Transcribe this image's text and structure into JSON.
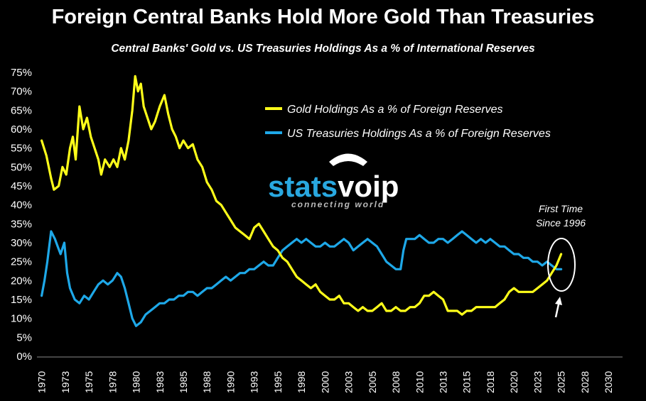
{
  "chart_data": {
    "type": "line",
    "title": "Foreign Central Banks Hold More Gold Than Treasuries",
    "subtitle": "Central Banks' Gold vs. US Treasuries Holdings As a % of International Reserves",
    "xlim": [
      1969.5,
      2031.5
    ],
    "ylim": [
      0,
      75
    ],
    "x_ticks": [
      "1970",
      "1973",
      "1975",
      "1978",
      "1980",
      "1983",
      "1985",
      "1988",
      "1990",
      "1993",
      "1995",
      "1998",
      "2000",
      "2003",
      "2005",
      "2008",
      "2010",
      "2013",
      "2015",
      "2018",
      "2020",
      "2023",
      "2025",
      "2028",
      "2030"
    ],
    "y_ticks": [
      "0%",
      "5%",
      "10%",
      "15%",
      "20%",
      "25%",
      "30%",
      "35%",
      "40%",
      "45%",
      "50%",
      "55%",
      "60%",
      "65%",
      "70%",
      "75%"
    ],
    "y_tick_values": [
      0,
      5,
      10,
      15,
      20,
      25,
      30,
      35,
      40,
      45,
      50,
      55,
      60,
      65,
      70,
      75
    ],
    "legend_position": "top-right",
    "grid": false,
    "series": [
      {
        "name": "Gold Holdings As a % of Foreign Reserves",
        "color": "#ffff1a",
        "points": [
          [
            1970,
            57
          ],
          [
            1970.5,
            53
          ],
          [
            1971,
            47
          ],
          [
            1971.3,
            44
          ],
          [
            1971.8,
            45
          ],
          [
            1972.2,
            50
          ],
          [
            1972.6,
            48
          ],
          [
            1973,
            55
          ],
          [
            1973.3,
            58
          ],
          [
            1973.6,
            52
          ],
          [
            1974,
            66
          ],
          [
            1974.4,
            60
          ],
          [
            1974.8,
            63
          ],
          [
            1975.2,
            58
          ],
          [
            1975.6,
            55
          ],
          [
            1976,
            52
          ],
          [
            1976.3,
            48
          ],
          [
            1976.7,
            52
          ],
          [
            1977.2,
            50
          ],
          [
            1977.6,
            52
          ],
          [
            1978,
            50
          ],
          [
            1978.4,
            55
          ],
          [
            1978.8,
            52
          ],
          [
            1979.2,
            57
          ],
          [
            1979.6,
            65
          ],
          [
            1979.9,
            74
          ],
          [
            1980.2,
            70
          ],
          [
            1980.5,
            72
          ],
          [
            1980.8,
            66
          ],
          [
            1981.2,
            63
          ],
          [
            1981.6,
            60
          ],
          [
            1982,
            62
          ],
          [
            1982.5,
            66
          ],
          [
            1983,
            69
          ],
          [
            1983.4,
            64
          ],
          [
            1983.8,
            60
          ],
          [
            1984.2,
            58
          ],
          [
            1984.6,
            55
          ],
          [
            1985,
            57
          ],
          [
            1985.5,
            55
          ],
          [
            1986,
            56
          ],
          [
            1986.5,
            52
          ],
          [
            1987,
            50
          ],
          [
            1987.5,
            46
          ],
          [
            1988,
            44
          ],
          [
            1988.5,
            41
          ],
          [
            1989,
            40
          ],
          [
            1989.5,
            38
          ],
          [
            1990,
            36
          ],
          [
            1990.5,
            34
          ],
          [
            1991,
            33
          ],
          [
            1991.5,
            32
          ],
          [
            1992,
            31
          ],
          [
            1992.5,
            34
          ],
          [
            1993,
            35
          ],
          [
            1993.5,
            33
          ],
          [
            1994,
            31
          ],
          [
            1994.5,
            29
          ],
          [
            1995,
            28
          ],
          [
            1995.5,
            26
          ],
          [
            1996,
            25
          ],
          [
            1996.5,
            23
          ],
          [
            1997,
            21
          ],
          [
            1997.5,
            20
          ],
          [
            1998,
            19
          ],
          [
            1998.5,
            18
          ],
          [
            1999,
            19
          ],
          [
            1999.5,
            17
          ],
          [
            2000,
            16
          ],
          [
            2000.5,
            15
          ],
          [
            2001,
            15
          ],
          [
            2001.5,
            16
          ],
          [
            2002,
            14
          ],
          [
            2002.5,
            14
          ],
          [
            2003,
            13
          ],
          [
            2003.5,
            12
          ],
          [
            2004,
            13
          ],
          [
            2004.5,
            12
          ],
          [
            2005,
            12
          ],
          [
            2005.5,
            13
          ],
          [
            2006,
            14
          ],
          [
            2006.5,
            12
          ],
          [
            2007,
            12
          ],
          [
            2007.5,
            13
          ],
          [
            2008,
            12
          ],
          [
            2008.5,
            12
          ],
          [
            2009,
            13
          ],
          [
            2009.5,
            13
          ],
          [
            2010,
            14
          ],
          [
            2010.5,
            16
          ],
          [
            2011,
            16
          ],
          [
            2011.5,
            17
          ],
          [
            2012,
            16
          ],
          [
            2012.5,
            15
          ],
          [
            2013,
            12
          ],
          [
            2013.5,
            12
          ],
          [
            2014,
            12
          ],
          [
            2014.5,
            11
          ],
          [
            2015,
            12
          ],
          [
            2015.5,
            12
          ],
          [
            2016,
            13
          ],
          [
            2016.5,
            13
          ],
          [
            2017,
            13
          ],
          [
            2017.5,
            13
          ],
          [
            2018,
            13
          ],
          [
            2018.5,
            14
          ],
          [
            2019,
            15
          ],
          [
            2019.5,
            17
          ],
          [
            2020,
            18
          ],
          [
            2020.5,
            17
          ],
          [
            2021,
            17
          ],
          [
            2021.5,
            17
          ],
          [
            2022,
            17
          ],
          [
            2022.5,
            18
          ],
          [
            2023,
            19
          ],
          [
            2023.5,
            20
          ],
          [
            2024,
            22
          ],
          [
            2024.5,
            24
          ],
          [
            2025,
            27
          ]
        ]
      },
      {
        "name": "US Treasuries Holdings As a % of Foreign Reserves",
        "color": "#1ea8e8",
        "points": [
          [
            1970,
            16
          ],
          [
            1970.3,
            20
          ],
          [
            1970.6,
            25
          ],
          [
            1971,
            33
          ],
          [
            1971.4,
            31
          ],
          [
            1971.7,
            29
          ],
          [
            1972,
            27
          ],
          [
            1972.4,
            30
          ],
          [
            1972.7,
            22
          ],
          [
            1973,
            18
          ],
          [
            1973.5,
            15
          ],
          [
            1974,
            14
          ],
          [
            1974.5,
            16
          ],
          [
            1975,
            15
          ],
          [
            1975.5,
            17
          ],
          [
            1976,
            19
          ],
          [
            1976.5,
            20
          ],
          [
            1977,
            19
          ],
          [
            1977.5,
            20
          ],
          [
            1978,
            22
          ],
          [
            1978.4,
            21
          ],
          [
            1978.8,
            18
          ],
          [
            1979.2,
            14
          ],
          [
            1979.6,
            10
          ],
          [
            1980,
            8
          ],
          [
            1980.5,
            9
          ],
          [
            1981,
            11
          ],
          [
            1981.5,
            12
          ],
          [
            1982,
            13
          ],
          [
            1982.5,
            14
          ],
          [
            1983,
            14
          ],
          [
            1983.5,
            15
          ],
          [
            1984,
            15
          ],
          [
            1984.5,
            16
          ],
          [
            1985,
            16
          ],
          [
            1985.5,
            17
          ],
          [
            1986,
            17
          ],
          [
            1986.5,
            16
          ],
          [
            1987,
            17
          ],
          [
            1987.5,
            18
          ],
          [
            1988,
            18
          ],
          [
            1988.5,
            19
          ],
          [
            1989,
            20
          ],
          [
            1989.5,
            21
          ],
          [
            1990,
            20
          ],
          [
            1990.5,
            21
          ],
          [
            1991,
            22
          ],
          [
            1991.5,
            22
          ],
          [
            1992,
            23
          ],
          [
            1992.5,
            23
          ],
          [
            1993,
            24
          ],
          [
            1993.5,
            25
          ],
          [
            1994,
            24
          ],
          [
            1994.5,
            24
          ],
          [
            1995,
            26
          ],
          [
            1995.5,
            28
          ],
          [
            1996,
            29
          ],
          [
            1996.5,
            30
          ],
          [
            1997,
            31
          ],
          [
            1997.5,
            30
          ],
          [
            1998,
            31
          ],
          [
            1998.5,
            30
          ],
          [
            1999,
            29
          ],
          [
            1999.5,
            29
          ],
          [
            2000,
            30
          ],
          [
            2000.5,
            29
          ],
          [
            2001,
            29
          ],
          [
            2001.5,
            30
          ],
          [
            2002,
            31
          ],
          [
            2002.5,
            30
          ],
          [
            2003,
            28
          ],
          [
            2003.5,
            29
          ],
          [
            2004,
            30
          ],
          [
            2004.5,
            31
          ],
          [
            2005,
            30
          ],
          [
            2005.5,
            29
          ],
          [
            2006,
            27
          ],
          [
            2006.5,
            25
          ],
          [
            2007,
            24
          ],
          [
            2007.5,
            23
          ],
          [
            2008,
            23
          ],
          [
            2008.3,
            28
          ],
          [
            2008.6,
            31
          ],
          [
            2009,
            31
          ],
          [
            2009.5,
            31
          ],
          [
            2010,
            32
          ],
          [
            2010.5,
            31
          ],
          [
            2011,
            30
          ],
          [
            2011.5,
            30
          ],
          [
            2012,
            31
          ],
          [
            2012.5,
            31
          ],
          [
            2013,
            30
          ],
          [
            2013.5,
            31
          ],
          [
            2014,
            32
          ],
          [
            2014.5,
            33
          ],
          [
            2015,
            32
          ],
          [
            2015.5,
            31
          ],
          [
            2016,
            30
          ],
          [
            2016.5,
            31
          ],
          [
            2017,
            30
          ],
          [
            2017.5,
            31
          ],
          [
            2018,
            30
          ],
          [
            2018.5,
            29
          ],
          [
            2019,
            29
          ],
          [
            2019.5,
            28
          ],
          [
            2020,
            27
          ],
          [
            2020.5,
            27
          ],
          [
            2021,
            26
          ],
          [
            2021.5,
            26
          ],
          [
            2022,
            25
          ],
          [
            2022.5,
            25
          ],
          [
            2023,
            24
          ],
          [
            2023.5,
            25
          ],
          [
            2024,
            24
          ],
          [
            2024.5,
            23
          ],
          [
            2025,
            23
          ]
        ]
      }
    ],
    "annotation": "First Time\nSince 1996",
    "annotation_line1": "First Time",
    "annotation_line2": "Since 1996"
  },
  "watermark": {
    "brand_part1": "stats",
    "brand_part2": "voip",
    "tagline": "connecting world",
    "icon": "telephone-icon",
    "color_primary": "#29a8e0",
    "color_secondary": "#ffffff"
  }
}
